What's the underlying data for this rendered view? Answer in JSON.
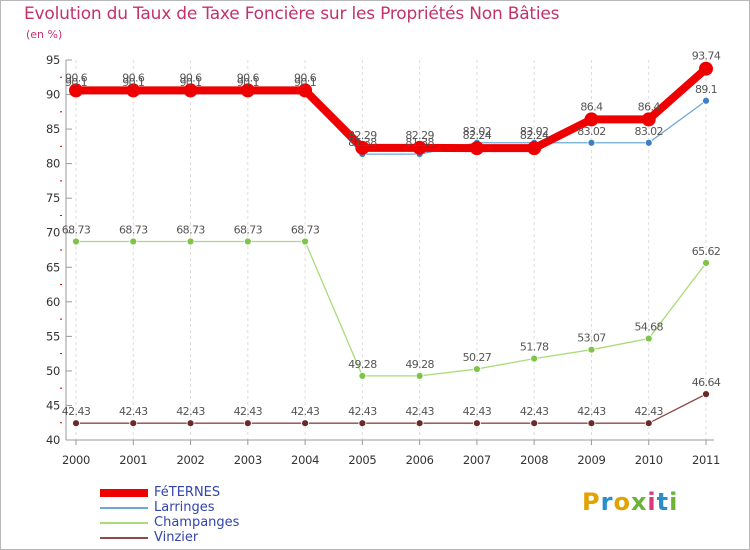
{
  "title": "Evolution du Taux de Taxe Foncière sur les Propriétés Non Bâties",
  "subtitle": "(en %)",
  "logo": {
    "text": "Proxiti",
    "colors": [
      "#e2a200",
      "#2a8fc7",
      "#e2a200",
      "#6cb437",
      "#d93a7e",
      "#2a8fc7",
      "#6cb437"
    ]
  },
  "chart_data": {
    "type": "line",
    "title": "Evolution du Taux de Taxe Foncière sur les Propriétés Non Bâties",
    "ylabel": "(en %)",
    "xlabel": "",
    "x": [
      "2000",
      "2001",
      "2002",
      "2003",
      "2004",
      "2005",
      "2006",
      "2007",
      "2008",
      "2009",
      "2010",
      "2011"
    ],
    "ylim": [
      40,
      95
    ],
    "yticks": [
      40,
      45,
      50,
      55,
      60,
      65,
      70,
      75,
      80,
      85,
      90,
      95
    ],
    "grid": "vertical dashed",
    "legend_position": "bottom-left",
    "series": [
      {
        "name": "FéTERNES",
        "color": "#ee0000",
        "values": [
          90.6,
          90.6,
          90.6,
          90.6,
          90.6,
          82.29,
          82.29,
          82.24,
          82.24,
          86.4,
          86.4,
          93.74
        ],
        "labels": [
          "90.6",
          "90.6",
          "90.6",
          "90.6",
          "90.6",
          "82.29",
          "82.29",
          "82.24",
          "82.24",
          "86.4",
          "86.4",
          "93.74"
        ]
      },
      {
        "name": "Larringes",
        "color": "#6da9d8",
        "values": [
          90.1,
          90.1,
          90.1,
          90.1,
          90.1,
          81.38,
          81.38,
          83.02,
          83.02,
          83.02,
          83.02,
          89.1
        ],
        "labels": [
          "90.1",
          "90.1",
          "90.1",
          "90.1",
          "90.1",
          "81.38",
          "81.38",
          "83.02",
          "83.02",
          "83.02",
          "83.02",
          "89.1"
        ]
      },
      {
        "name": "Champanges",
        "color": "#a9dc77",
        "values": [
          68.73,
          68.73,
          68.73,
          68.73,
          68.73,
          49.28,
          49.28,
          50.27,
          51.78,
          53.07,
          54.68,
          65.62
        ],
        "labels": [
          "68.73",
          "68.73",
          "68.73",
          "68.73",
          "68.73",
          "49.28",
          "49.28",
          "50.27",
          "51.78",
          "53.07",
          "54.68",
          "65.62"
        ]
      },
      {
        "name": "Vinzier",
        "color": "#8e4a4a",
        "values": [
          42.43,
          42.43,
          42.43,
          42.43,
          42.43,
          42.43,
          42.43,
          42.43,
          42.43,
          42.43,
          42.43,
          46.64
        ],
        "labels": [
          "42.43",
          "42.43",
          "42.43",
          "42.43",
          "42.43",
          "42.43",
          "42.43",
          "42.43",
          "42.43",
          "42.43",
          "42.43",
          "46.64"
        ]
      }
    ]
  }
}
